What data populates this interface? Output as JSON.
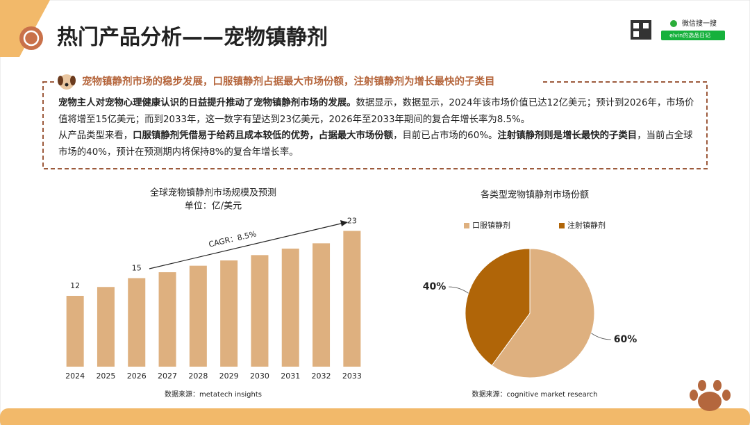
{
  "title": "热门产品分析——宠物镇静剂",
  "wechat": {
    "label": "微信搜一搜",
    "search": "elvin的选品日记"
  },
  "summary": {
    "heading": "宠物镇静剂市场的稳步发展，口服镇静剂占据最大市场份额，注射镇静剂为增长最快的子类目",
    "paragraphs": [
      [
        {
          "text": "宠物主人对宠物心理健康认识的日益提升推动了宠物镇静剂市场的发展。",
          "bold": true
        },
        {
          "text": "数据显示，数据显示，2024年该市场价值已达12亿美元；预计到2026年，市场价值将增至15亿美元；而到2033年，这一数字有望达到23亿美元，2026年至2033年期间的复合年增长率为8.5%。",
          "bold": false
        }
      ],
      [
        {
          "text": "从产品类型来看，",
          "bold": false
        },
        {
          "text": "口服镇静剂凭借易于给药且成本较低的优势，占据最大市场份额",
          "bold": true
        },
        {
          "text": "，目前已占市场的60%。",
          "bold": false
        },
        {
          "text": "注射镇静剂则是增长最快的子类目",
          "bold": true
        },
        {
          "text": "，当前占全球市场的40%，预计在预测期内将保持8%的复合年增长率。",
          "bold": false
        }
      ]
    ]
  },
  "chart_data": [
    {
      "type": "bar",
      "title": "全球宠物镇静剂市场规模及预测",
      "subtitle": "单位：亿/美元",
      "categories": [
        "2024",
        "2025",
        "2026",
        "2027",
        "2028",
        "2029",
        "2030",
        "2031",
        "2032",
        "2033"
      ],
      "values": [
        12,
        13.5,
        15,
        16,
        17.1,
        18,
        18.9,
        20,
        20.9,
        23
      ],
      "value_labels": [
        "12",
        null,
        "15",
        null,
        null,
        null,
        null,
        null,
        null,
        "23"
      ],
      "color": "#deb07f",
      "ylim": [
        0,
        25
      ],
      "annotation": "CAGR：8.5%",
      "source": "数据来源：metatech insights"
    },
    {
      "type": "pie",
      "title": "各类型宠物镇静剂市场份额",
      "series": [
        {
          "name": "口服镇静剂",
          "color": "#deb07f"
        },
        {
          "name": "注射镇静剂",
          "color": "#b06508"
        }
      ],
      "values": [
        60,
        40
      ],
      "value_labels": [
        "60%",
        "40%"
      ],
      "legend": "top-left",
      "source": "数据来源：cognitive market research"
    }
  ]
}
